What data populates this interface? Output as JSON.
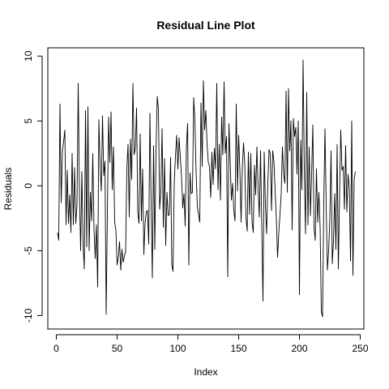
{
  "chart_data": {
    "type": "line",
    "title": "Residual Line Plot",
    "xlabel": "Index",
    "ylabel": "Residuals",
    "xlim": [
      1,
      245
    ],
    "ylim": [
      -10.1,
      9.7
    ],
    "x_ticks": [
      0,
      50,
      100,
      150,
      200,
      250
    ],
    "y_ticks": [
      -10,
      -5,
      0,
      5,
      10
    ],
    "x_tick_labels": [
      "0",
      "50",
      "100",
      "150",
      "200",
      "250"
    ],
    "y_tick_labels": [
      "-10",
      "-5",
      "0",
      "5",
      "10"
    ],
    "grid": false,
    "line_color": "#000000",
    "x_start": 1,
    "series": [
      {
        "values": [
          -3.6,
          -4.2,
          6.3,
          -1.3,
          2.7,
          3.4,
          4.3,
          -3.0,
          1.2,
          -2.9,
          -0.7,
          -3.6,
          2.5,
          -3.0,
          1.4,
          -2.9,
          -1.5,
          7.9,
          -0.4,
          -5.0,
          1.1,
          -4.4,
          -6.4,
          5.8,
          -4.7,
          6.1,
          -5.0,
          -0.5,
          -2.7,
          2.5,
          -3.4,
          -5.6,
          -3.0,
          -7.8,
          5.1,
          1.5,
          -0.4,
          5.4,
          0.8,
          1.9,
          -9.9,
          -2.1,
          5.3,
          1.8,
          5.7,
          -0.3,
          3.0,
          -2.8,
          -3.4,
          -6.1,
          -5.5,
          -4.3,
          -6.5,
          -4.9,
          -5.9,
          -5.4,
          -5.1,
          1.3,
          3.2,
          -2.4,
          3.6,
          0.5,
          7.9,
          2.4,
          2.9,
          6.0,
          -2.0,
          -2.9,
          4.0,
          -2.7,
          1.3,
          -5.3,
          -2.9,
          -2.0,
          -1.9,
          -4.5,
          5.6,
          -1.4,
          -7.1,
          3.1,
          -4.9,
          2.6,
          6.9,
          5.9,
          -1.8,
          -0.4,
          4.4,
          -3.2,
          2.1,
          -4.6,
          -0.5,
          -2.3,
          -2.2,
          2.2,
          -6.1,
          -6.6,
          0.2,
          2.3,
          3.9,
          1.3,
          3.7,
          2.2,
          0.7,
          -1.7,
          -0.6,
          -3.1,
          3.0,
          4.8,
          -6.1,
          1.0,
          -0.6,
          -0.5,
          6.8,
          5.0,
          1.0,
          -1.6,
          -2.2,
          -2.8,
          6.4,
          1.5,
          8.1,
          4.3,
          5.8,
          3.2,
          1.8,
          1.5,
          -0.9,
          2.6,
          0.1,
          2.9,
          1.3,
          7.9,
          -0.3,
          3.2,
          -1.1,
          5.3,
          2.4,
          8.0,
          2.5,
          3.8,
          -7.0,
          4.8,
          1.9,
          -1.1,
          0.2,
          -1.9,
          -2.7,
          6.3,
          -0.4,
          3.9,
          1.2,
          -2.8,
          1.4,
          3.3,
          1.7,
          -2.4,
          -3.5,
          2.6,
          -2.2,
          2.5,
          -2.8,
          -3.6,
          1.6,
          -0.7,
          3.0,
          -0.2,
          -2.4,
          2.7,
          -3.1,
          -8.9,
          2.6,
          -1.5,
          -3.7,
          0.3,
          2.8,
          2.5,
          -1.9,
          2.7,
          1.9,
          -0.4,
          -2.5,
          -5.5,
          -3.6,
          -2.2,
          -0.6,
          3.0,
          0.9,
          0.2,
          7.3,
          -0.5,
          7.5,
          2.7,
          5.0,
          -3.4,
          5.2,
          3.8,
          4.5,
          0.9,
          5.0,
          -8.4,
          3.5,
          -0.3,
          9.7,
          1.3,
          -3.7,
          7.2,
          -3.0,
          3.0,
          -2.3,
          0.8,
          4.7,
          -3.2,
          -4.2,
          1.3,
          -2.8,
          -0.5,
          -3.2,
          -9.7,
          -10.1,
          -1.4,
          4.4,
          -1.6,
          -6.5,
          -5.0,
          -2.5,
          2.7,
          -6.0,
          -4.2,
          -0.6,
          -4.9,
          3.2,
          -6.4,
          -0.8,
          4.3,
          1.2,
          1.5,
          -1.8,
          3.1,
          -2.0,
          0.9,
          -0.2,
          -5.8,
          5.0,
          -6.9,
          0.5,
          1.1
        ]
      }
    ]
  }
}
